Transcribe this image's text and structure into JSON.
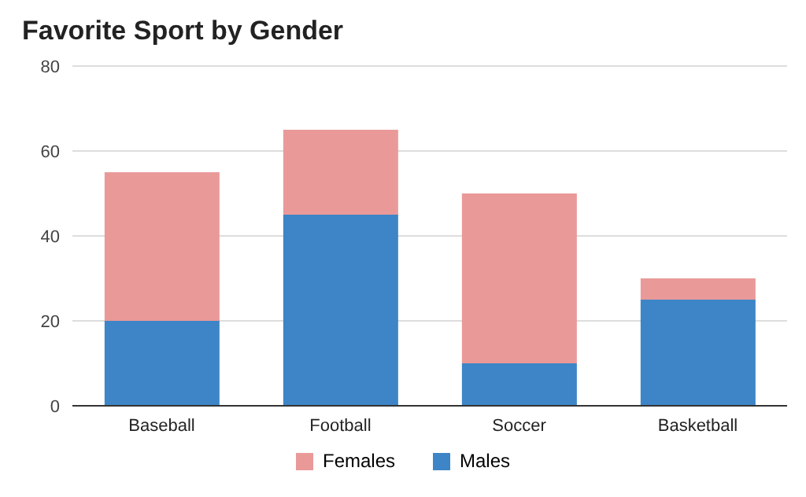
{
  "chart_data": {
    "type": "bar",
    "title": "Favorite Sport by Gender",
    "categories": [
      "Baseball",
      "Football",
      "Soccer",
      "Basketball"
    ],
    "stacked": true,
    "series": [
      {
        "name": "Males",
        "color": "#3d85c6",
        "values": [
          20,
          45,
          10,
          25
        ]
      },
      {
        "name": "Females",
        "color": "#ea9999",
        "values": [
          35,
          20,
          40,
          5
        ]
      }
    ],
    "ylim": [
      0,
      80
    ],
    "yticks": [
      0,
      20,
      40,
      60,
      80
    ],
    "grid": "y",
    "legend": "bottom"
  }
}
